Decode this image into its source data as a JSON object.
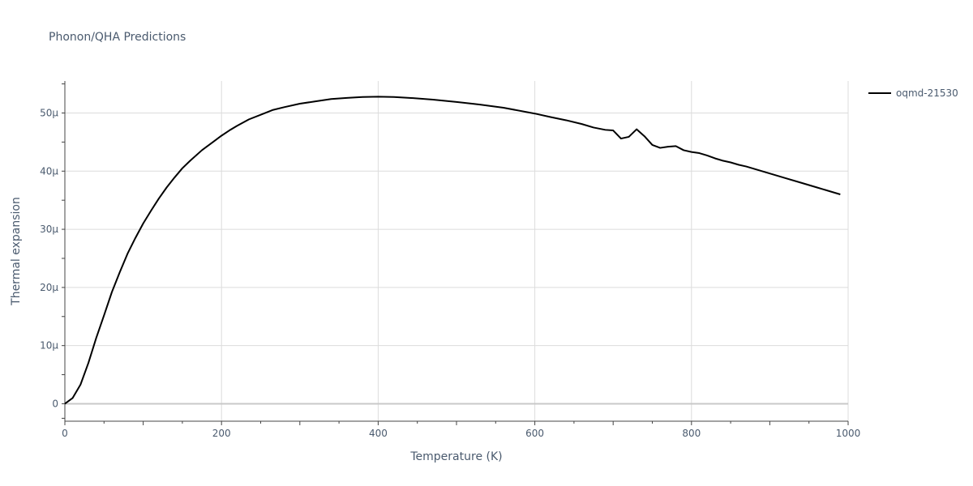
{
  "chart_data": {
    "type": "line",
    "title": "Phonon/QHA Predictions",
    "xlabel": "Temperature (K)",
    "ylabel": "Thermal expansion",
    "xlim": [
      0,
      1000
    ],
    "ylim": [
      -3,
      55.5
    ],
    "x_ticks": [
      0,
      200,
      400,
      600,
      800,
      1000
    ],
    "x_tick_labels": [
      "0",
      "200",
      "400",
      "600",
      "800",
      "1000"
    ],
    "y_ticks": [
      0,
      10,
      20,
      30,
      40,
      50
    ],
    "y_tick_labels": [
      "0",
      "10μ",
      "20μ",
      "30μ",
      "40μ",
      "50μ"
    ],
    "grid": true,
    "legend_position": "top-right",
    "line_color": "#000000",
    "series": [
      {
        "name": "oqmd-21530",
        "x": [
          0,
          10,
          20,
          30,
          40,
          50,
          60,
          70,
          80,
          90,
          100,
          110,
          120,
          130,
          140,
          150,
          160,
          175,
          190,
          200,
          210,
          220,
          235,
          250,
          265,
          280,
          300,
          320,
          340,
          360,
          380,
          400,
          420,
          440,
          470,
          500,
          530,
          560,
          600,
          620,
          640,
          660,
          675,
          690,
          700,
          710,
          720,
          730,
          740,
          750,
          760,
          770,
          780,
          790,
          800,
          810,
          820,
          830,
          840,
          850,
          860,
          870,
          880,
          900,
          920,
          940,
          960,
          980,
          990
        ],
        "y": [
          0,
          1,
          3.3,
          7,
          11.3,
          15.2,
          19.2,
          22.6,
          25.8,
          28.5,
          31,
          33.2,
          35.3,
          37.2,
          38.9,
          40.5,
          41.8,
          43.6,
          45.1,
          46.1,
          47,
          47.8,
          48.9,
          49.7,
          50.5,
          51,
          51.6,
          52,
          52.4,
          52.6,
          52.75,
          52.8,
          52.75,
          52.6,
          52.3,
          51.9,
          51.45,
          50.9,
          49.9,
          49.3,
          48.75,
          48.1,
          47.5,
          47.1,
          47,
          45.6,
          45.9,
          47.2,
          46,
          44.5,
          44,
          44.2,
          44.3,
          43.6,
          43.3,
          43.1,
          42.7,
          42.2,
          41.8,
          41.5,
          41.1,
          40.8,
          40.4,
          39.6,
          38.8,
          38,
          37.2,
          36.4,
          36
        ]
      }
    ]
  }
}
